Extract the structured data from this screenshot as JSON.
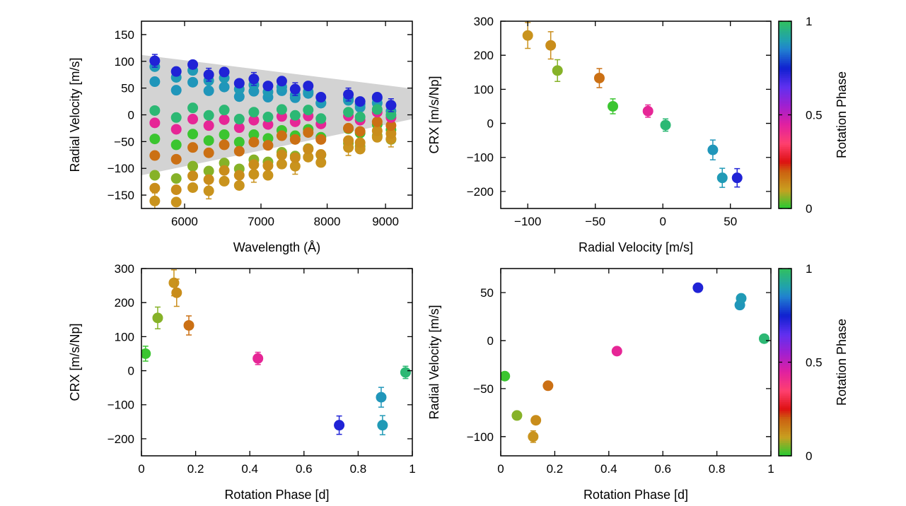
{
  "colormap": [
    [
      0,
      "#22cc33"
    ],
    [
      0.1,
      "#c8a020"
    ],
    [
      0.2,
      "#cc6010"
    ],
    [
      0.25,
      "#dd1111"
    ],
    [
      0.35,
      "#ff4070"
    ],
    [
      0.45,
      "#e020a0"
    ],
    [
      0.55,
      "#a020d0"
    ],
    [
      0.65,
      "#6030f0"
    ],
    [
      0.75,
      "#1020d0"
    ],
    [
      0.85,
      "#2080d0"
    ],
    [
      0.9,
      "#20a0b0"
    ],
    [
      1,
      "#30c060"
    ]
  ],
  "chart_data": [
    {
      "id": "rv-vs-wavelength",
      "type": "scatter",
      "xlabel": "Wavelength (Å)",
      "ylabel": "Radial Velocity [m/s]",
      "xlim": [
        5500,
        9500
      ],
      "xscale": "log",
      "ylim": [
        -175,
        175
      ],
      "xticks": [
        6000,
        7000,
        8000,
        9000
      ],
      "yticks": [
        -150,
        -100,
        -50,
        0,
        50,
        100,
        150
      ],
      "grid": false,
      "model_band": {
        "x": [
          5500,
          9500
        ],
        "lower": [
          -113,
          -8
        ],
        "upper": [
          112,
          49
        ],
        "color": "#d3d3d3"
      },
      "wavelengths": [
        5650,
        5900,
        6100,
        6300,
        6500,
        6700,
        6900,
        7100,
        7300,
        7500,
        7700,
        7900,
        8350,
        8550,
        8850,
        9100
      ],
      "series": [
        {
          "phase": 0.015,
          "values": [
            -45,
            -56,
            -36,
            -48,
            -37,
            -51,
            -37,
            -44,
            -29,
            -39,
            -27,
            -42,
            -26,
            -34,
            -18,
            -28
          ]
        },
        {
          "phase": 0.06,
          "values": [
            -113,
            -119,
            -96,
            -105,
            -90,
            -101,
            -84,
            -88,
            -70,
            -77,
            -63,
            -75,
            -53,
            -59,
            -39,
            -46
          ]
        },
        {
          "phase": 0.12,
          "error": 15,
          "values": [
            -161,
            -163,
            -136,
            -142,
            -124,
            -132,
            -111,
            -113,
            -92,
            -96,
            -79,
            -89,
            -61,
            -64,
            -42,
            -45
          ]
        },
        {
          "phase": 0.13,
          "values": [
            -137,
            -140,
            -114,
            -121,
            -104,
            -113,
            -93,
            -95,
            -75,
            -80,
            -64,
            -74,
            -48,
            -52,
            -30,
            -35
          ]
        },
        {
          "phase": 0.175,
          "values": [
            -76,
            -83,
            -61,
            -71,
            -56,
            -68,
            -51,
            -57,
            -39,
            -46,
            -33,
            -46,
            -25,
            -31,
            -13,
            -20
          ]
        },
        {
          "phase": 0.43,
          "values": [
            -15,
            -27,
            -8,
            -20,
            -9,
            -24,
            -10,
            -18,
            -3,
            -13,
            -2,
            -17,
            -2,
            -10,
            5,
            -5
          ]
        },
        {
          "phase": 0.885,
          "values": [
            62,
            46,
            61,
            45,
            52,
            34,
            44,
            33,
            45,
            32,
            40,
            22,
            31,
            20,
            31,
            18
          ]
        },
        {
          "phase": 0.89,
          "values": [
            90,
            70,
            83,
            64,
            69,
            48,
            56,
            43,
            52,
            37,
            43,
            22,
            27,
            14,
            22,
            7
          ]
        },
        {
          "phase": 0.975,
          "values": [
            8,
            -5,
            13,
            -1,
            9,
            -8,
            5,
            -4,
            10,
            -1,
            9,
            -7,
            5,
            -4,
            10,
            0
          ]
        },
        {
          "phase": 0.73,
          "error": 12,
          "values": [
            101,
            81,
            94,
            75,
            80,
            59,
            67,
            54,
            63,
            48,
            54,
            33,
            38,
            25,
            33,
            18
          ]
        }
      ]
    },
    {
      "id": "crx-vs-rv",
      "type": "scatter",
      "xlabel": "Radial Velocity [m/s]",
      "ylabel": "CRX [m/s/Np]",
      "xlim": [
        -120,
        80
      ],
      "ylim": [
        -250,
        300
      ],
      "xticks": [
        -100,
        -50,
        0,
        50
      ],
      "yticks": [
        -200,
        -100,
        0,
        100,
        200,
        300
      ],
      "grid": false,
      "colorbar": {
        "label": "Rotation Phase",
        "ticks": [
          "0",
          "0.5",
          "1"
        ],
        "range": [
          0,
          1
        ]
      },
      "points": [
        {
          "x": -37,
          "y": 50,
          "err": 22,
          "phase": 0.015
        },
        {
          "x": -78,
          "y": 155,
          "err": 32,
          "phase": 0.06
        },
        {
          "x": -100,
          "y": 258,
          "err": 38,
          "phase": 0.12
        },
        {
          "x": -83,
          "y": 229,
          "err": 40,
          "phase": 0.13
        },
        {
          "x": -47,
          "y": 133,
          "err": 28,
          "phase": 0.175
        },
        {
          "x": -11,
          "y": 36,
          "err": 18,
          "phase": 0.43
        },
        {
          "x": 55,
          "y": -160,
          "err": 27,
          "phase": 0.73
        },
        {
          "x": 37,
          "y": -78,
          "err": 29,
          "phase": 0.885
        },
        {
          "x": 44,
          "y": -160,
          "err": 28,
          "phase": 0.89
        },
        {
          "x": 2,
          "y": -5,
          "err": 18,
          "phase": 0.975
        }
      ]
    },
    {
      "id": "crx-vs-phase",
      "type": "scatter",
      "xlabel": "Rotation Phase [d]",
      "ylabel": "CRX [m/s/Np]",
      "xlim": [
        0,
        1
      ],
      "ylim": [
        -250,
        300
      ],
      "xticks": [
        0,
        0.2,
        0.4,
        0.6,
        0.8,
        1
      ],
      "yticks": [
        -200,
        -100,
        0,
        100,
        200,
        300
      ],
      "grid": false,
      "points": [
        {
          "x": 0.015,
          "y": 50,
          "err": 22,
          "phase": 0.015
        },
        {
          "x": 0.06,
          "y": 155,
          "err": 32,
          "phase": 0.06
        },
        {
          "x": 0.12,
          "y": 258,
          "err": 38,
          "phase": 0.12
        },
        {
          "x": 0.13,
          "y": 229,
          "err": 40,
          "phase": 0.13
        },
        {
          "x": 0.175,
          "y": 133,
          "err": 28,
          "phase": 0.175
        },
        {
          "x": 0.43,
          "y": 36,
          "err": 18,
          "phase": 0.43
        },
        {
          "x": 0.73,
          "y": -160,
          "err": 27,
          "phase": 0.73
        },
        {
          "x": 0.885,
          "y": -78,
          "err": 29,
          "phase": 0.885
        },
        {
          "x": 0.89,
          "y": -160,
          "err": 28,
          "phase": 0.89
        },
        {
          "x": 0.975,
          "y": -5,
          "err": 18,
          "phase": 0.975
        }
      ]
    },
    {
      "id": "rv-vs-phase",
      "type": "scatter",
      "xlabel": "Rotation Phase [d]",
      "ylabel": "Radial Velocity [m/s]",
      "xlim": [
        0,
        1
      ],
      "ylim": [
        -120,
        75
      ],
      "xticks": [
        0,
        0.2,
        0.4,
        0.6,
        0.8,
        1
      ],
      "yticks": [
        -100,
        -50,
        0,
        50
      ],
      "grid": false,
      "colorbar": {
        "label": "Rotation Phase",
        "ticks": [
          "0",
          "0.5",
          "1"
        ],
        "range": [
          0,
          1
        ]
      },
      "points": [
        {
          "x": 0.015,
          "y": -37,
          "err": 2,
          "phase": 0.015
        },
        {
          "x": 0.06,
          "y": -78,
          "err": 2,
          "phase": 0.06
        },
        {
          "x": 0.12,
          "y": -100,
          "err": 6,
          "phase": 0.12
        },
        {
          "x": 0.13,
          "y": -83,
          "err": 4,
          "phase": 0.13
        },
        {
          "x": 0.175,
          "y": -47,
          "err": 2,
          "phase": 0.175
        },
        {
          "x": 0.43,
          "y": -11,
          "err": 2,
          "phase": 0.43
        },
        {
          "x": 0.73,
          "y": 55,
          "err": 2,
          "phase": 0.73
        },
        {
          "x": 0.885,
          "y": 37,
          "err": 2,
          "phase": 0.885
        },
        {
          "x": 0.89,
          "y": 44,
          "err": 2,
          "phase": 0.89
        },
        {
          "x": 0.975,
          "y": 2,
          "err": 2,
          "phase": 0.975
        }
      ]
    }
  ]
}
